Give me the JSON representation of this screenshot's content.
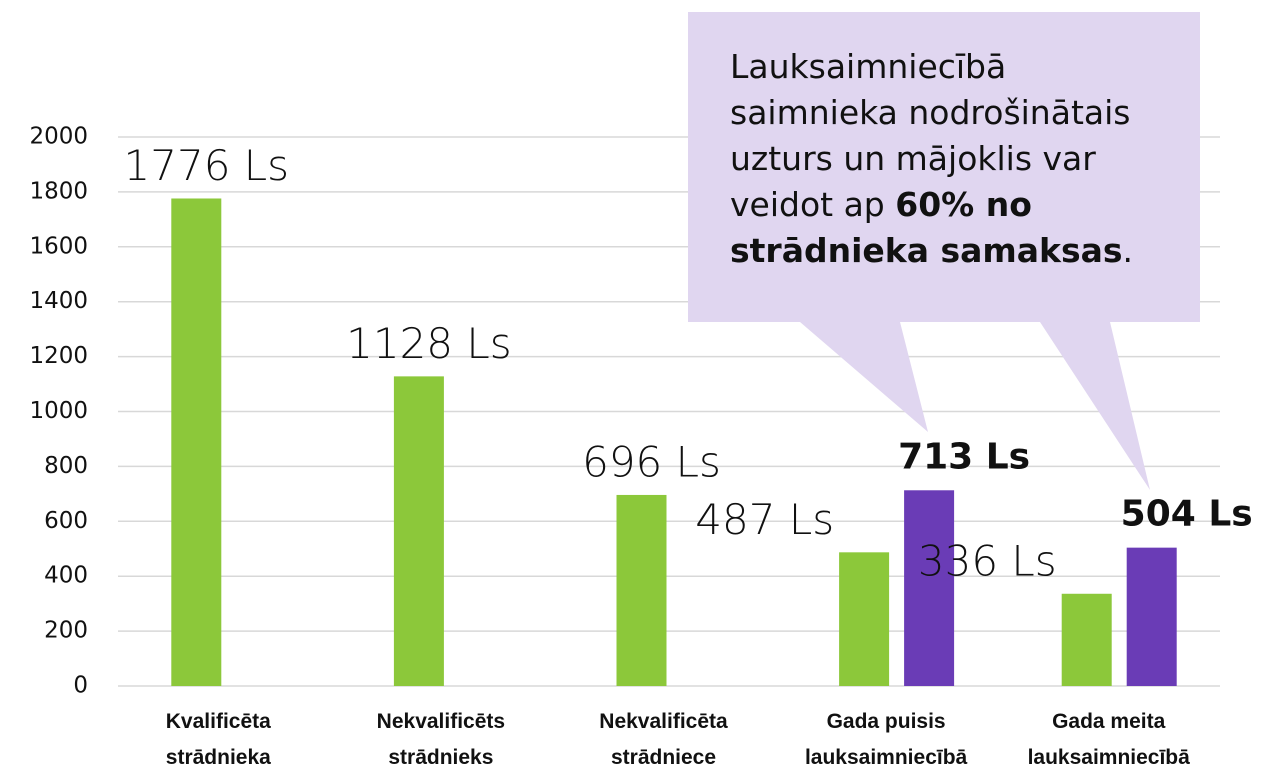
{
  "chart_data": {
    "type": "bar",
    "categories": [
      "Kvalificēta strādnieka",
      "Nekvalificēts strādnieks",
      "Nekvalificēta strādniece",
      "Gada puisis lauksaimniecībā",
      "Gada meita lauksaimniecībā"
    ],
    "series": [
      {
        "color": "#8cc83a",
        "values": [
          1776,
          1128,
          696,
          487,
          336
        ],
        "value_labels": [
          "1776 Ls",
          "1128 Ls",
          "696 Ls",
          "487 Ls",
          "336 Ls"
        ]
      },
      {
        "color": "#6a3cb6",
        "values": [
          null,
          null,
          null,
          713,
          504
        ],
        "value_labels": [
          null,
          null,
          null,
          "713 Ls",
          "504 Ls"
        ]
      }
    ],
    "ylim": [
      0,
      2000
    ],
    "yticks": [
      0,
      200,
      400,
      600,
      800,
      1000,
      1200,
      1400,
      1600,
      1800,
      2000
    ],
    "grid": true,
    "annotation": [
      "Lauksaimniecībā saimnieka nodrošinātais uzturs un mājoklis var veidot ap ",
      "60% no strādnieka samaksas",
      "."
    ]
  }
}
